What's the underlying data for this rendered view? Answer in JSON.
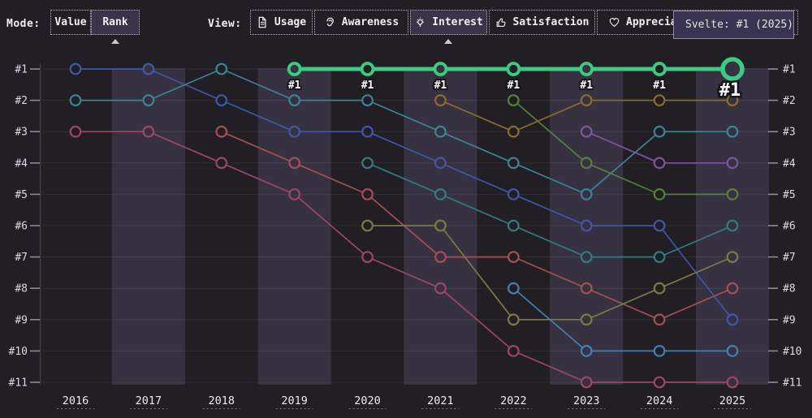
{
  "toolbar": {
    "mode_label": "Mode:",
    "modes": [
      {
        "label": "Value",
        "selected": false
      },
      {
        "label": "Rank",
        "selected": true
      }
    ],
    "view_label": "View:",
    "views": [
      {
        "label": "Usage",
        "icon": "document-icon",
        "selected": false
      },
      {
        "label": "Awareness",
        "icon": "ear-icon",
        "selected": false
      },
      {
        "label": "Interest",
        "icon": "lightbulb-icon",
        "selected": true
      },
      {
        "label": "Satisfaction",
        "icon": "thumbs-up-icon",
        "selected": false
      },
      {
        "label": "Appreciation",
        "icon": "heart-icon",
        "selected": false
      }
    ]
  },
  "tooltip": {
    "text": "Svelte: #1 (2025)"
  },
  "colors": {
    "background": "#211e24",
    "column_stripe": "#373242",
    "selected_button_bg": "#3a3448",
    "highlight_green": "#3ccb82",
    "tooltip_bg": "#393452"
  },
  "chart_data": {
    "type": "line",
    "subtype": "bump-rank",
    "title": "",
    "x": [
      2016,
      2017,
      2018,
      2019,
      2020,
      2021,
      2022,
      2023,
      2024,
      2025
    ],
    "y_axis": {
      "labels": [
        "#1",
        "#2",
        "#3",
        "#4",
        "#5",
        "#6",
        "#7",
        "#8",
        "#9",
        "#10",
        "#11"
      ],
      "min_rank": 1,
      "max_rank": 11,
      "inverted": true
    },
    "grid": true,
    "highlight_point_label": "#1",
    "series": [
      {
        "id": "indigo-blue",
        "color": "#4156a8",
        "highlight": false,
        "ranks": [
          1,
          1,
          2,
          3,
          3,
          4,
          5,
          6,
          6,
          9
        ]
      },
      {
        "id": "teal",
        "color": "#3a8494",
        "highlight": false,
        "ranks": [
          2,
          2,
          1,
          2,
          2,
          3,
          4,
          5,
          3,
          3
        ]
      },
      {
        "id": "rose",
        "color": "#9e4566",
        "highlight": false,
        "ranks": [
          3,
          3,
          4,
          5,
          7,
          8,
          10,
          11,
          11,
          11
        ]
      },
      {
        "id": "crimson",
        "color": "#a64e55",
        "highlight": false,
        "ranks": [
          null,
          null,
          3,
          4,
          5,
          7,
          7,
          8,
          9,
          8
        ]
      },
      {
        "id": "dark-teal",
        "color": "#2e7d80",
        "highlight": false,
        "ranks": [
          null,
          null,
          null,
          null,
          4,
          5,
          6,
          7,
          7,
          6
        ]
      },
      {
        "id": "olive",
        "color": "#7c7a43",
        "highlight": false,
        "ranks": [
          null,
          null,
          null,
          null,
          6,
          6,
          9,
          9,
          8,
          7
        ]
      },
      {
        "id": "mustard",
        "color": "#8c6b2b",
        "highlight": false,
        "ranks": [
          null,
          null,
          null,
          null,
          null,
          2,
          3,
          2,
          2,
          2
        ]
      },
      {
        "id": "dark-green",
        "color": "#55803c",
        "highlight": false,
        "ranks": [
          null,
          null,
          null,
          null,
          null,
          null,
          2,
          4,
          5,
          5
        ]
      },
      {
        "id": "steel-blue",
        "color": "#4380b2",
        "highlight": false,
        "ranks": [
          null,
          null,
          null,
          null,
          null,
          null,
          8,
          10,
          10,
          10
        ]
      },
      {
        "id": "purple",
        "color": "#7c54a3",
        "highlight": false,
        "ranks": [
          null,
          null,
          null,
          null,
          null,
          null,
          null,
          3,
          4,
          4
        ]
      },
      {
        "id": "svelte",
        "name": "Svelte",
        "color": "#3ccb82",
        "highlight": true,
        "ranks": [
          null,
          null,
          null,
          1,
          1,
          1,
          1,
          1,
          1,
          1
        ]
      }
    ]
  }
}
